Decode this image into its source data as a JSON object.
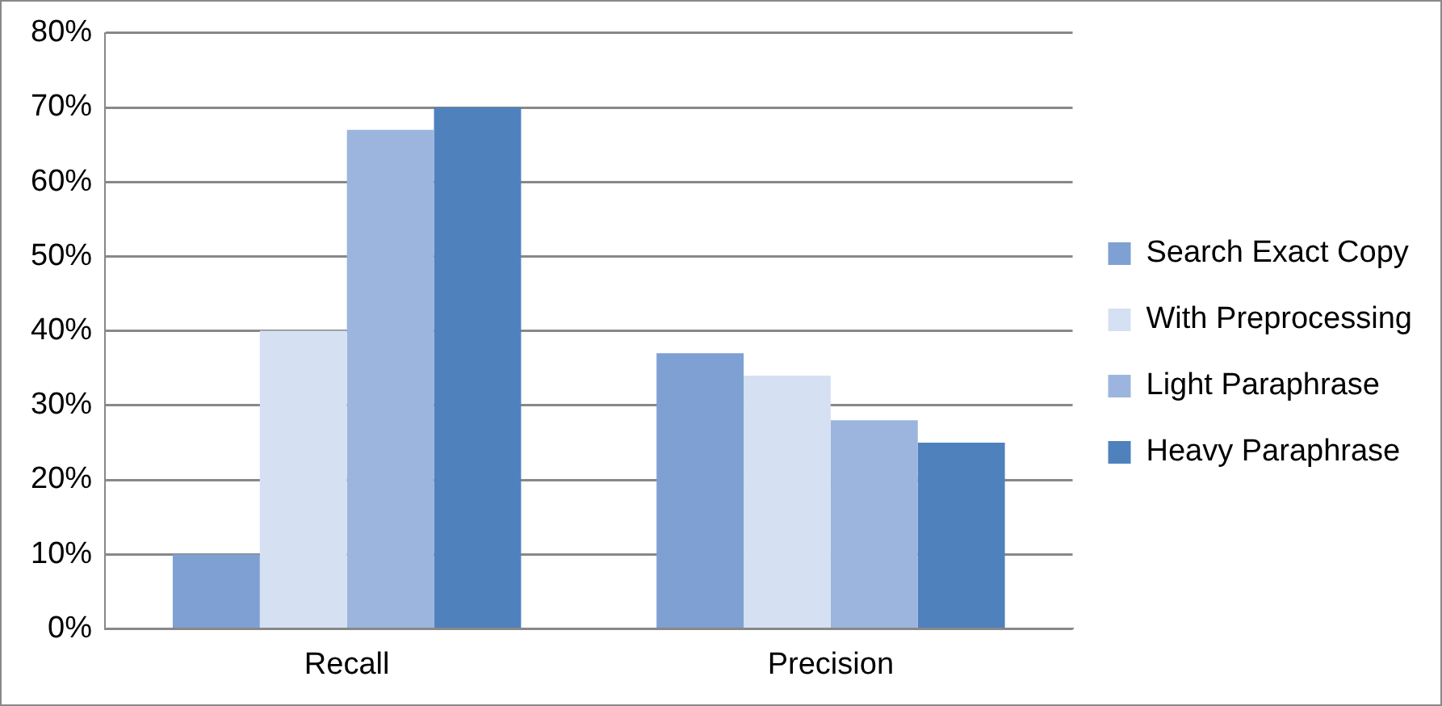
{
  "chart_data": {
    "type": "bar",
    "categories": [
      "Recall",
      "Precision"
    ],
    "series": [
      {
        "name": "Search Exact Copy",
        "color": "#7fa0d2",
        "values": [
          10,
          37
        ]
      },
      {
        "name": "With Preprocessing",
        "color": "#d5e1f2",
        "values": [
          40,
          34
        ]
      },
      {
        "name": "Light Paraphrase",
        "color": "#9bb5de",
        "values": [
          67,
          28
        ]
      },
      {
        "name": "Heavy Paraphrase",
        "color": "#4f81bd",
        "values": [
          70,
          25
        ]
      }
    ],
    "ylim": [
      0,
      80
    ],
    "yticks": [
      {
        "value": 0,
        "label": "0%"
      },
      {
        "value": 10,
        "label": "10%"
      },
      {
        "value": 20,
        "label": "20%"
      },
      {
        "value": 30,
        "label": "30%"
      },
      {
        "value": 40,
        "label": "40%"
      },
      {
        "value": 50,
        "label": "50%"
      },
      {
        "value": 60,
        "label": "60%"
      },
      {
        "value": 70,
        "label": "70%"
      },
      {
        "value": 80,
        "label": "80%"
      }
    ],
    "grid": "y",
    "legend": "right"
  }
}
